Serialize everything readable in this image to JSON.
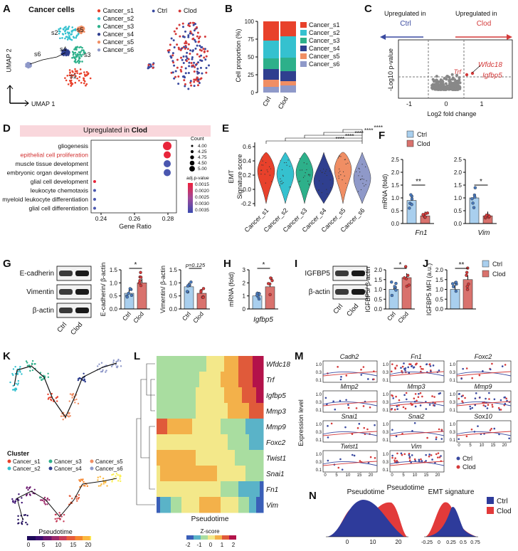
{
  "colors": {
    "s1": "#e8412b",
    "s2": "#35c1cf",
    "s3": "#2db08a",
    "s4": "#2f3f8f",
    "s5": "#f08e64",
    "s6": "#8f99c9",
    "ctrl": "#3a4aa0",
    "clod": "#d43a3a",
    "ctrl_bar": "#a9cfee",
    "clod_bar": "#d9726d"
  },
  "panels": {
    "A": {
      "letter": "A",
      "title": "Cancer cells",
      "umap2": "UMAP 2",
      "umap1": "UMAP 1",
      "legend": [
        "Cancer_s1",
        "Cancer_s2",
        "Cancer_s3",
        "Cancer_s4",
        "Cancer_s5",
        "Cancer_s6"
      ],
      "cluster_labels": [
        "s1",
        "s2",
        "s3",
        "s4",
        "s5",
        "s6"
      ],
      "group_legend": [
        "Ctrl",
        "Clod"
      ]
    },
    "B": {
      "letter": "B"
    },
    "C": {
      "letter": "C",
      "up_ctrl": "Upregulated in",
      "up_ctrl_b": "Ctrl",
      "up_clod": "Upregulated in",
      "up_clod_b": "Clod",
      "ylabel": "-Log10 p-value",
      "xlabel": "Log2 fold change",
      "xticks": [
        "-1",
        "0",
        "1"
      ],
      "genes": [
        "Trf",
        "Wfdc18",
        "Igfbp5"
      ]
    },
    "D": {
      "letter": "D",
      "header": "Upregulated in",
      "header_b": "Clod",
      "xlabel": "Gene Ratio",
      "xticks": [
        "0.24",
        "0.26",
        "0.28"
      ],
      "terms": [
        "gliogenesis",
        "epithelial cell proliferation",
        "muscle tissue development",
        "embryonic organ development",
        "glial cell development",
        "leukocyte chemotaxis",
        "myeloid leukocyte differentiation",
        "glial cell differentiation"
      ],
      "count_title": "Count",
      "count_vals": [
        "4.00",
        "4.25",
        "4.75",
        "4.50",
        "5.00"
      ],
      "padj_title": "adj.p-value",
      "padj_vals": [
        "0.0015",
        "0.0020",
        "0.0025",
        "0.0030",
        "0.0035"
      ]
    },
    "E": {
      "letter": "E",
      "ylabel": "EMT\nSignature score",
      "yticks": [
        "0.6",
        "0.4",
        "0.2",
        "0.0",
        "-0.2"
      ],
      "groups": [
        "Cancer_s1",
        "Cancer_s2",
        "Cancer_s3",
        "Cancer_s4",
        "Cancer_s5",
        "Cancer_s6"
      ],
      "stars": [
        "****",
        "****",
        "****",
        "****",
        "****"
      ]
    },
    "F": {
      "letter": "F",
      "legend": [
        "Ctrl",
        "Clod"
      ],
      "ylabel": "mRNA (fold)",
      "genes": [
        "Fn1",
        "Vim"
      ],
      "sig": [
        "**",
        "*"
      ],
      "yticks1": [
        "0.0",
        "0.5",
        "1.0",
        "1.5",
        "2.0",
        "2.5"
      ],
      "yticks2": [
        "0.0",
        "0.5",
        "1.0",
        "1.5",
        "2.0",
        "2.5"
      ]
    },
    "G": {
      "letter": "G",
      "blots": [
        "E-cadherin",
        "Vimentin",
        "β-actin"
      ],
      "lanes": [
        "Ctrl",
        "Clod"
      ],
      "y1": "E-cadherin/ β-actin",
      "y2": "Vimentin/ β-actin",
      "sig1": "*",
      "sig2": "p=0.125",
      "yticks1": [
        "0.0",
        "0.5",
        "1.0",
        "1.5"
      ],
      "yticks2": [
        "0.0",
        "0.5",
        "1.0",
        "1.5"
      ]
    },
    "H": {
      "letter": "H",
      "ylabel": "mRNA (fold)",
      "gene": "Igfbp5",
      "sig": "*",
      "yticks": [
        "0",
        "1",
        "2",
        "3"
      ]
    },
    "I": {
      "letter": "I",
      "blots": [
        "IGFBP5",
        "β-actin"
      ],
      "lanes": [
        "Ctrl",
        "Clod"
      ],
      "ylabel": "IGFBP5/ β-actin",
      "sig": "*",
      "yticks": [
        "0.0",
        "0.5",
        "1.0",
        "1.5",
        "2.0"
      ]
    },
    "J": {
      "letter": "J",
      "ylabel": "IGFBP5 MFI (a.u.)",
      "sig": "**",
      "legend": [
        "Ctrl",
        "Clod"
      ],
      "yticks": [
        "0.0",
        "0.5",
        "1.0",
        "1.5",
        "2.0"
      ]
    },
    "K": {
      "letter": "K",
      "cluster_title": "Cluster",
      "clusters": [
        "Cancer_s1",
        "Cancer_s2",
        "Cancer_s3",
        "Cancer_s4",
        "Cancer_s5",
        "Cancer_s6"
      ],
      "pseudo_title": "Pseudotime",
      "pseudo_ticks": [
        "0",
        "5",
        "10",
        "15",
        "20"
      ]
    },
    "L": {
      "letter": "L",
      "genes": [
        "Wfdc18",
        "Trf",
        "Igfbp5",
        "Mmp3",
        "Mmp9",
        "Foxc2",
        "Twist1",
        "Snai1",
        "Fn1",
        "Vim"
      ],
      "xlabel": "Pseudotime",
      "zscore": "Z-score",
      "zticks": [
        "-2",
        "-1",
        "0",
        "1",
        "2"
      ]
    },
    "M": {
      "letter": "M",
      "ylabel": "Expression level",
      "xlabel": "Pseudotime",
      "genes": [
        "Cadh2",
        "Fn1",
        "Foxc2",
        "Mmp2",
        "Mmp3",
        "Mmp9",
        "Snai1",
        "Snai2",
        "Sox10",
        "Twist1",
        "Vim"
      ],
      "legend": [
        "Ctrl",
        "Clod"
      ]
    },
    "N": {
      "letter": "N",
      "t1": "Pseudotime",
      "t2": "EMT signature",
      "x1": [
        "0",
        "10",
        "20"
      ],
      "x2": [
        "-0.25",
        "0",
        "0.25",
        "0.5",
        "0.75"
      ],
      "legend": [
        "Ctrl",
        "Clod"
      ]
    }
  },
  "chart_data": [
    {
      "type": "bar",
      "title": "",
      "ylabel": "Cell proportion (%)",
      "categories": [
        "Ctrl",
        "Clod"
      ],
      "ylim": [
        0,
        100
      ],
      "series": [
        {
          "name": "Cancer_s6",
          "values": [
            8,
            10
          ]
        },
        {
          "name": "Cancer_s5",
          "values": [
            10,
            6
          ]
        },
        {
          "name": "Cancer_s4",
          "values": [
            15,
            14
          ]
        },
        {
          "name": "Cancer_s3",
          "values": [
            15,
            19
          ]
        },
        {
          "name": "Cancer_s2",
          "values": [
            25,
            30
          ]
        },
        {
          "name": "Cancer_s1",
          "values": [
            27,
            21
          ]
        }
      ],
      "yticks": [
        0,
        25,
        50,
        75,
        100
      ]
    },
    {
      "type": "bar",
      "title": "",
      "ylabel": "mRNA (fold)",
      "categories": [
        "Fn1 Ctrl",
        "Fn1 Clod",
        "Vim Ctrl",
        "Vim Clod"
      ],
      "values": [
        0.9,
        0.3,
        1.0,
        0.3
      ],
      "ylim": [
        0,
        2.5
      ]
    },
    {
      "type": "bar",
      "ylabel": "E-cadherin/ β-actin",
      "categories": [
        "Ctrl",
        "Clod"
      ],
      "values": [
        0.6,
        1.0
      ],
      "ylim": [
        0,
        1.5
      ]
    },
    {
      "type": "bar",
      "ylabel": "Vimentin/ β-actin",
      "categories": [
        "Ctrl",
        "Clod"
      ],
      "values": [
        0.85,
        0.6
      ],
      "ylim": [
        0,
        1.5
      ]
    },
    {
      "type": "bar",
      "ylabel": "mRNA (fold)",
      "categories": [
        "Ctrl",
        "Clod"
      ],
      "values": [
        1.0,
        1.7
      ],
      "ylim": [
        0,
        3
      ]
    },
    {
      "type": "bar",
      "ylabel": "IGFBP5/ β-actin",
      "categories": [
        "Ctrl",
        "Clod"
      ],
      "values": [
        1.0,
        1.6
      ],
      "ylim": [
        0,
        2
      ]
    },
    {
      "type": "bar",
      "ylabel": "IGFBP5 MFI (a.u.)",
      "categories": [
        "Ctrl",
        "Clod"
      ],
      "values": [
        1.0,
        1.5
      ],
      "ylim": [
        0,
        2
      ]
    }
  ]
}
